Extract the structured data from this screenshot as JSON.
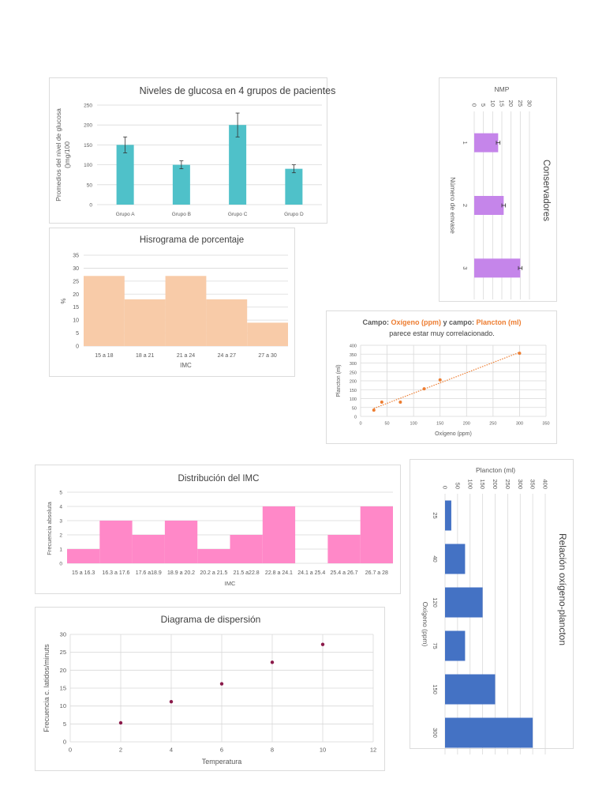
{
  "chart_data": [
    {
      "type": "bar",
      "title": "Niveles de glucosa en 4 grupos de pacientes",
      "xlabel": "",
      "ylabel": [
        "Promedios del nivel de glucosa",
        "()mg/100"
      ],
      "categories": [
        "Grupo A",
        "Grupo B",
        "Grupo C",
        "Grupo D"
      ],
      "values": [
        150,
        100,
        200,
        90
      ],
      "error": [
        20,
        10,
        30,
        10
      ],
      "ylim": [
        0,
        250
      ],
      "yticks": [
        "0",
        "50",
        "100",
        "150",
        "200",
        "250"
      ],
      "grid": true,
      "color": "#4fc1c9"
    },
    {
      "type": "bar",
      "title": "Hisrograma de porcentaje",
      "xlabel": "IMC",
      "ylabel": "%",
      "categories": [
        "15 a 18",
        "18 a 21",
        "21 a 24",
        "24 a 27",
        "27 a 30"
      ],
      "values": [
        27,
        18,
        27,
        18,
        9
      ],
      "ylim": [
        0,
        35
      ],
      "yticks": [
        "0",
        "5",
        "10",
        "15",
        "20",
        "25",
        "30",
        "35"
      ],
      "grid": true,
      "color": "#f8cba8"
    },
    {
      "type": "bar",
      "orientation": "rotated 90° clockwise",
      "title": "Conservadores",
      "xlabel": "Número de envase",
      "ylabel": "NMP",
      "categories": [
        "1",
        "2",
        "3"
      ],
      "values": [
        13,
        16,
        25
      ],
      "error": [
        1,
        1,
        1
      ],
      "ylim": [
        0,
        30
      ],
      "yticks": [
        "0",
        "5",
        "10",
        "15",
        "20",
        "25",
        "30"
      ],
      "grid": true,
      "color": "#c585ea"
    },
    {
      "type": "scatter",
      "title_parts": [
        "Campo: ",
        "Oxígeno (ppm)",
        " y campo: ",
        "Plancton (ml)"
      ],
      "subtitle": "parece estar muy correlacionado.",
      "xlabel": "Oxígeno (ppm)",
      "ylabel": "Plancton (ml)",
      "points": [
        [
          25,
          35
        ],
        [
          40,
          80
        ],
        [
          75,
          80
        ],
        [
          120,
          155
        ],
        [
          150,
          205
        ],
        [
          300,
          355
        ]
      ],
      "trendline": "linear",
      "xlim": [
        0,
        350
      ],
      "ylim": [
        0,
        400
      ],
      "xticks": [
        "0",
        "50",
        "100",
        "150",
        "200",
        "250",
        "300",
        "350"
      ],
      "yticks": [
        "0",
        "50",
        "100",
        "150",
        "200",
        "250",
        "300",
        "350",
        "400"
      ],
      "grid": true,
      "color": "#ed7d31",
      "title_color": "#595959"
    },
    {
      "type": "bar",
      "title": "Distribución del IMC",
      "xlabel": "IMC",
      "ylabel": "Frecuencia absoluta",
      "categories": [
        "15 a 16.3",
        "16.3 a 17.6",
        "17.6 a18.9",
        "18.9 a 20.2",
        "20.2 a 21.5",
        "21.5 a22.8",
        "22.8 a 24.1",
        "24.1 a 25.4",
        "25.4 a 26.7",
        "26.7 a 28"
      ],
      "values": [
        1,
        3,
        2,
        3,
        1,
        2,
        4,
        0,
        2,
        4
      ],
      "ylim": [
        0,
        5
      ],
      "yticks": [
        "0",
        "1",
        "2",
        "3",
        "4",
        "5"
      ],
      "grid": true,
      "color": "#ff88c8"
    },
    {
      "type": "bar",
      "orientation": "rotated 90° clockwise",
      "title": "Relación oxígeno-plancton",
      "xlabel": "Oxígeno (ppm)",
      "ylabel": "Plancton (ml)",
      "categories": [
        "25",
        "40",
        "120",
        "75",
        "150",
        "300"
      ],
      "values": [
        25,
        80,
        150,
        80,
        200,
        350
      ],
      "ylim": [
        0,
        400
      ],
      "yticks": [
        "0",
        "50",
        "100",
        "150",
        "200",
        "250",
        "300",
        "350",
        "400"
      ],
      "grid": true,
      "color": "#4472c4"
    },
    {
      "type": "scatter",
      "title": "Diagrama de dispersión",
      "xlabel": "Temperatura",
      "ylabel": "Frecuencia c. latidos/minuts",
      "points": [
        [
          2,
          5.3
        ],
        [
          4,
          11.2
        ],
        [
          6,
          16.2
        ],
        [
          8,
          22.2
        ],
        [
          10,
          27.2
        ]
      ],
      "xlim": [
        0,
        12
      ],
      "ylim": [
        0,
        30
      ],
      "xticks": [
        "0",
        "2",
        "4",
        "6",
        "8",
        "10",
        "12"
      ],
      "yticks": [
        "0",
        "5",
        "10",
        "15",
        "20",
        "25",
        "30"
      ],
      "grid": true,
      "color": "#8b1a4a"
    }
  ]
}
